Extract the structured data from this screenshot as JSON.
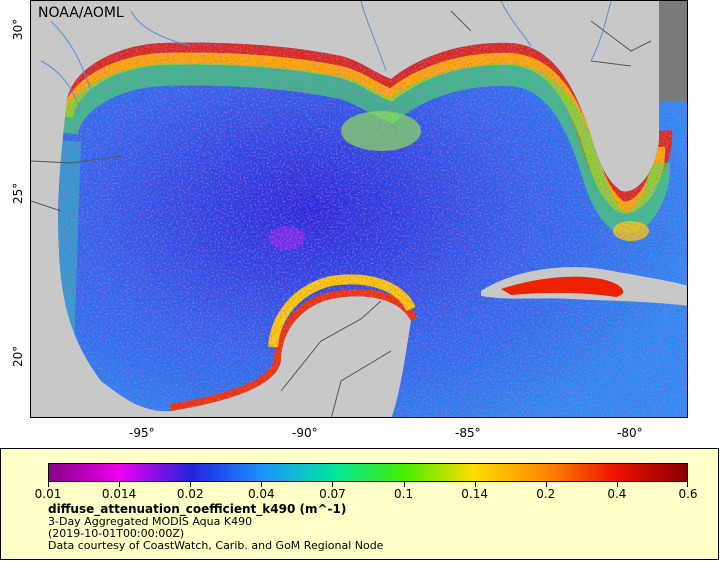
{
  "map": {
    "credit": "NOAA/AOML",
    "lon_labels": [
      "-95°",
      "-90°",
      "-85°",
      "-80°"
    ],
    "lat_labels": [
      "30°",
      "25°",
      "20°"
    ],
    "colors": {
      "land": "#c8c8c8",
      "nodata": "#7a7a7a",
      "border": "#555555",
      "river": "#5a8fd6"
    }
  },
  "legend": {
    "ticks": [
      "0.01",
      "0.014",
      "0.02",
      "0.04",
      "0.07",
      "0.1",
      "0.14",
      "0.2",
      "0.4",
      "0.6"
    ],
    "variable": "diffuse_attenuation_coefficient_k490 (m^-1)",
    "product": "3-Day Aggregated MODIS Aqua K490",
    "time": "(2019-10-01T00:00:00Z)",
    "source": "Data courtesy of CoastWatch, Carib. and GoM Regional Node",
    "colormap": [
      "#880088",
      "#ee00ee",
      "#2222dd",
      "#1e90ff",
      "#00e5a0",
      "#44ee00",
      "#ffdd00",
      "#ff8800",
      "#ee1100",
      "#880000"
    ],
    "background": "#ffffc8"
  }
}
